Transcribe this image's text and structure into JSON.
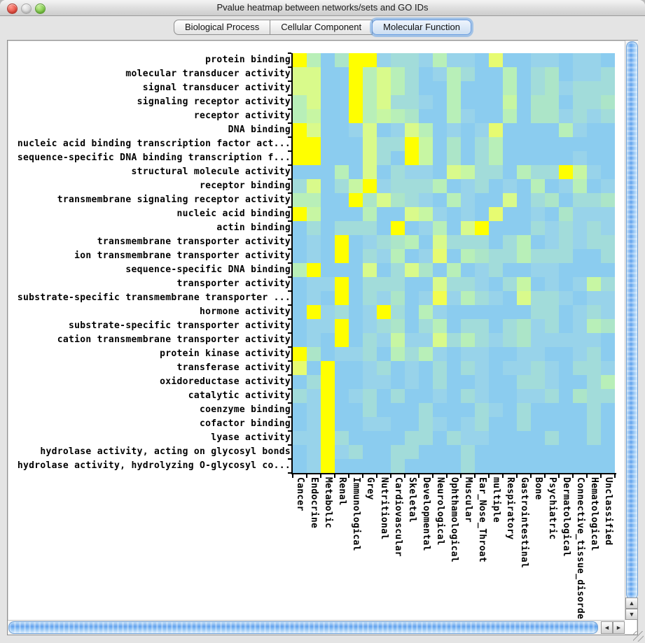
{
  "window": {
    "title": "Pvalue heatmap between networks/sets and GO IDs"
  },
  "tabs": {
    "items": [
      {
        "label": "Biological Process",
        "selected": false
      },
      {
        "label": "Cellular Component",
        "selected": false
      },
      {
        "label": "Molecular Function",
        "selected": true
      }
    ]
  },
  "scrollbars": {
    "up_glyph": "▲",
    "down_glyph": "▼",
    "left_glyph": "◄",
    "right_glyph": "►"
  },
  "chart_data": {
    "type": "heatmap",
    "rows": [
      "protein binding",
      "molecular transducer activity",
      "signal transducer activity",
      "signaling receptor activity",
      "receptor activity",
      "DNA binding",
      "nucleic acid binding transcription factor act...",
      "sequence-specific DNA binding transcription f...",
      "structural molecule activity",
      "receptor binding",
      "transmembrane signaling receptor activity",
      "nucleic acid binding",
      "actin binding",
      "transmembrane transporter activity",
      "ion transmembrane transporter activity",
      "sequence-specific DNA binding",
      "transporter activity",
      "substrate-specific transmembrane transporter ...",
      "hormone activity",
      "substrate-specific transporter activity",
      "cation transmembrane transporter activity",
      "protein kinase activity",
      "transferase activity",
      "oxidoreductase activity",
      "catalytic activity",
      "coenzyme binding",
      "cofactor binding",
      "lyase activity",
      "hydrolase activity, acting on glycosyl bonds",
      "hydrolase activity, hydrolyzing O-glycosyl co..."
    ],
    "columns": [
      "Cancer",
      "Endocrine",
      "Metabolic",
      "Renal",
      "Immunological",
      "Grey",
      "Nutritional",
      "Cardiovascular",
      "Skeletal",
      "Developmental",
      "Neurological",
      "Ophthamological",
      "Muscular",
      "Ear_Nose_Throat",
      "multiple",
      "Respiratory",
      "Gastrointestinal",
      "Bone",
      "Psychiatric",
      "Dermatological",
      "Connective_tissue_disorder",
      "Hematological",
      "Unclassified"
    ],
    "palette": [
      "#8bccef",
      "#98d3ea",
      "#a2dcda",
      "#ace5c8",
      "#b8efb8",
      "#c7f6a3",
      "#d9fa8b",
      "#e7fb71",
      "#f2fd50",
      "#ffff00"
    ],
    "palette_meaning": "0 = light blue (high p-value) through 9 = bright yellow (low p-value / most significant)",
    "matrix": [
      "94039912214110700110110",
      "66009464201420040230112",
      "66009464200400040231222",
      "46009462210400050330223",
      "45009454300410040331212",
      "96001601640101700004100",
      "99000622950302400000000",
      "99000620950302400000100",
      "00040602110652204229510",
      "26025912224012010401401",
      "44009363210410060230223",
      "95000400651010700103111",
      "02022209014069000212121",
      "01090123406222024012122",
      "01090214017043224222002",
      "49000602630401200110000",
      "01190222006221025010152",
      "01090213018142106221011",
      "09120192041000000220121",
      "01190123024022023120143",
      "01090215116242123111110",
      "93011204241011001100120",
      "70900120102021011210221",
      "02900110102001002210024",
      "21901202001021001120322",
      "01900200020002102000020",
      "01900110021012002000020",
      "11920000220211000020020",
      "01912002200020000000000",
      "01900002000020000000000"
    ]
  }
}
